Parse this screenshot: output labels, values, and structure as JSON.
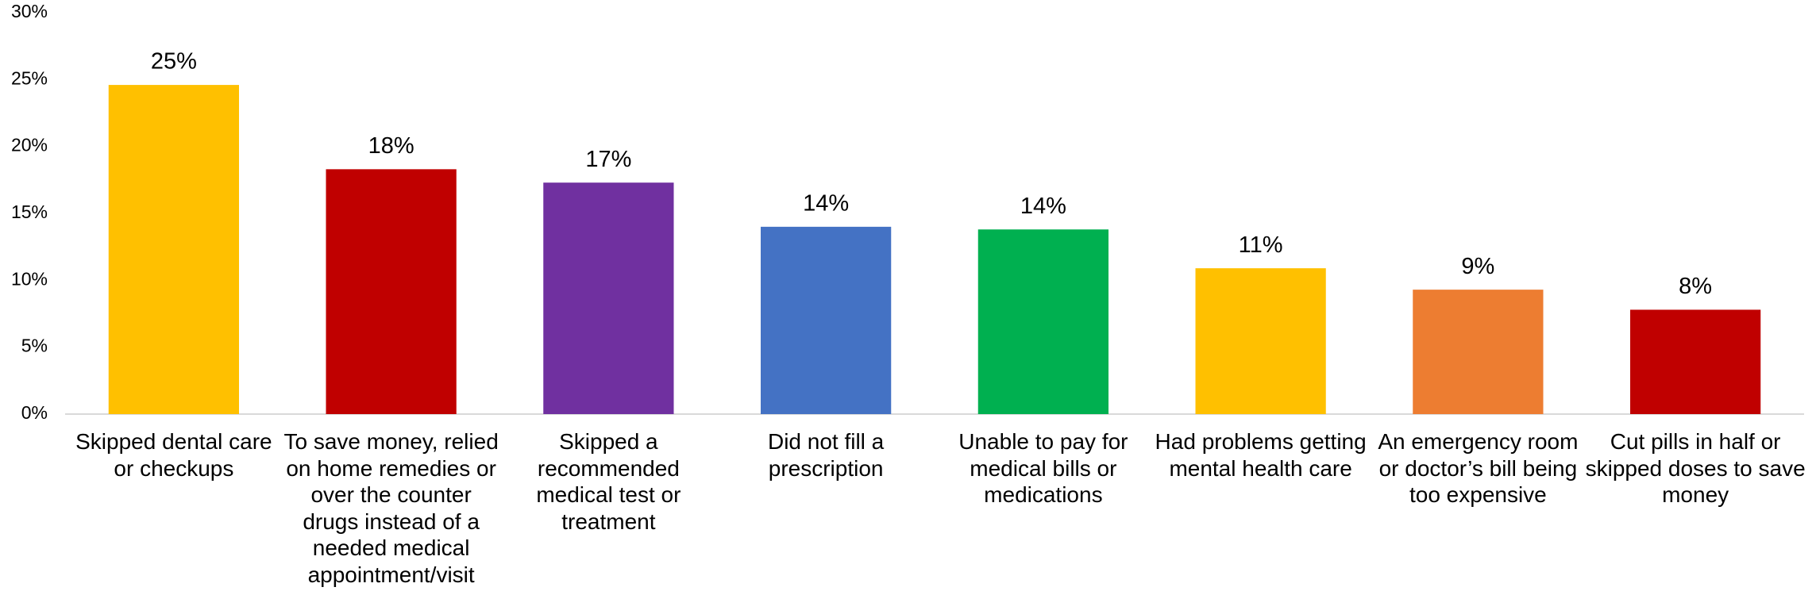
{
  "chart_data": {
    "type": "bar",
    "categories": [
      "Skipped dental care or checkups",
      "To save money, relied on home remedies or over the counter drugs instead of a needed medical appointment/visit",
      "Skipped a recommended medical test or treatment",
      "Did not fill a prescription",
      "Unable to pay for medical bills or medications",
      "Had problems getting mental health care",
      "An emergency room or doctor’s bill being too expensive",
      "Cut pills in half or skipped doses to save money"
    ],
    "values": [
      24.6,
      18.3,
      17.3,
      14.0,
      13.8,
      10.9,
      9.3,
      7.8
    ],
    "value_labels": [
      "25%",
      "18%",
      "17%",
      "14%",
      "14%",
      "11%",
      "9%",
      "8%"
    ],
    "colors": [
      "#ffc000",
      "#c00000",
      "#7030a0",
      "#4472c4",
      "#00b050",
      "#ffc000",
      "#ed7d31",
      "#c00000"
    ],
    "ylim": [
      0,
      30
    ],
    "yticks": [
      {
        "value": 0,
        "label": "0%"
      },
      {
        "value": 5,
        "label": "5%"
      },
      {
        "value": 10,
        "label": "10%"
      },
      {
        "value": 15,
        "label": "15%"
      },
      {
        "value": 20,
        "label": "20%"
      },
      {
        "value": 25,
        "label": "25%"
      },
      {
        "value": 30,
        "label": "30%"
      }
    ],
    "grid": false
  }
}
